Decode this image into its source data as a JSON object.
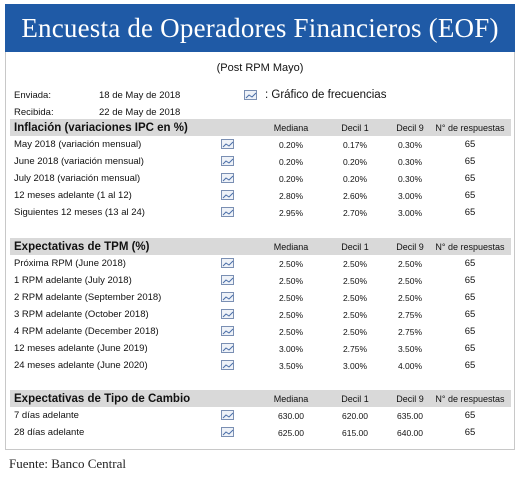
{
  "title": "Encuesta de Operadores Financieros (EOF)",
  "subtitle": "(Post RPM Mayo)",
  "meta": {
    "sent_label": "Enviada:",
    "sent_date": "18 de May de 2018",
    "received_label": "Recibida:",
    "received_date": "22 de May de 2018"
  },
  "chart_link": {
    "icon": "chart-icon",
    "label": ":  Gráfico de frecuencias"
  },
  "columns": [
    "Mediana",
    "Decil 1",
    "Decil 9",
    "N° de respuestas"
  ],
  "sections": [
    {
      "title": "Inflación (variaciones IPC en %)",
      "rows": [
        {
          "label": "May 2018 (variación mensual)",
          "mediana": "0.20%",
          "decil1": "0.17%",
          "decil9": "0.30%",
          "n": "65"
        },
        {
          "label": "June 2018 (variación mensual)",
          "mediana": "0.20%",
          "decil1": "0.20%",
          "decil9": "0.30%",
          "n": "65"
        },
        {
          "label": "July 2018 (variación mensual)",
          "mediana": "0.20%",
          "decil1": "0.20%",
          "decil9": "0.30%",
          "n": "65"
        },
        {
          "label": "12 meses adelante (1 al 12)",
          "mediana": "2.80%",
          "decil1": "2.60%",
          "decil9": "3.00%",
          "n": "65"
        },
        {
          "label": "Siguientes 12 meses (13 al 24)",
          "mediana": "2.95%",
          "decil1": "2.70%",
          "decil9": "3.00%",
          "n": "65"
        }
      ]
    },
    {
      "title": "Expectativas de TPM (%)",
      "rows": [
        {
          "label": "Próxima  RPM  (June 2018)",
          "mediana": "2.50%",
          "decil1": "2.50%",
          "decil9": "2.50%",
          "n": "65"
        },
        {
          "label": "1 RPM adelante  (July 2018)",
          "mediana": "2.50%",
          "decil1": "2.50%",
          "decil9": "2.50%",
          "n": "65"
        },
        {
          "label": "2 RPM adelante  (September 2018)",
          "mediana": "2.50%",
          "decil1": "2.50%",
          "decil9": "2.50%",
          "n": "65"
        },
        {
          "label": "3 RPM adelante  (October 2018)",
          "mediana": "2.50%",
          "decil1": "2.50%",
          "decil9": "2.75%",
          "n": "65"
        },
        {
          "label": "4 RPM adelante  (December 2018)",
          "mediana": "2.50%",
          "decil1": "2.50%",
          "decil9": "2.75%",
          "n": "65"
        },
        {
          "label": "12 meses adelante  (June 2019)",
          "mediana": "3.00%",
          "decil1": "2.75%",
          "decil9": "3.50%",
          "n": "65"
        },
        {
          "label": "24 meses adelante  (June 2020)",
          "mediana": "3.50%",
          "decil1": "3.00%",
          "decil9": "4.00%",
          "n": "65"
        }
      ]
    },
    {
      "title": "Expectativas de Tipo de Cambio",
      "rows": [
        {
          "label": "7 días adelante",
          "mediana": "630.00",
          "decil1": "620.00",
          "decil9": "635.00",
          "n": "65"
        },
        {
          "label": "28 días adelante",
          "mediana": "625.00",
          "decil1": "615.00",
          "decil9": "640.00",
          "n": "65"
        }
      ]
    }
  ],
  "source": "Fuente: Banco Central"
}
